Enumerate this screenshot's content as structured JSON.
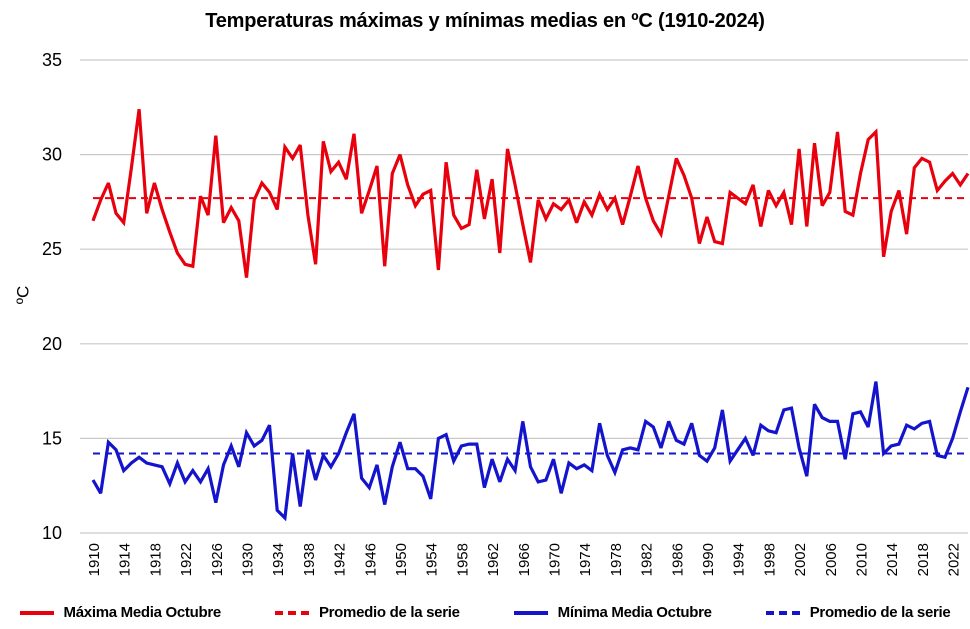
{
  "title": "Temperaturas máximas y mínimas medias en ºC (1910-2024)",
  "y_axis": {
    "label": "ºC",
    "ticks": [
      10,
      15,
      20,
      25,
      30,
      35
    ],
    "min": 10,
    "max": 35
  },
  "x_axis": {
    "tick_years": [
      1910,
      1914,
      1918,
      1922,
      1926,
      1930,
      1934,
      1938,
      1942,
      1946,
      1950,
      1954,
      1958,
      1962,
      1966,
      1970,
      1974,
      1978,
      1982,
      1986,
      1990,
      1994,
      1998,
      2002,
      2006,
      2010,
      2014,
      2018,
      2022
    ],
    "min": 1910,
    "max": 2024
  },
  "colors": {
    "max_series": "#e8000d",
    "min_series": "#1414cc",
    "grid": "#c9c9c9",
    "text": "#000000"
  },
  "legend": [
    {
      "label": "Máxima Media Octubre",
      "color": "#e8000d",
      "dashed": false
    },
    {
      "label": "Promedio de la serie",
      "color": "#e8000d",
      "dashed": true
    },
    {
      "label": "Mínima Media Octubre",
      "color": "#1414cc",
      "dashed": false
    },
    {
      "label": "Promedio de la serie",
      "color": "#1414cc",
      "dashed": true
    }
  ],
  "chart_data": {
    "type": "line",
    "title": "Temperaturas máximas y mínimas medias en ºC (1910-2024)",
    "xlabel": "",
    "ylabel": "ºC",
    "ylim": [
      10,
      35
    ],
    "xlim": [
      1910,
      2024
    ],
    "grid": "horizontal",
    "legend_position": "bottom",
    "x_start_year": 1910,
    "series": [
      {
        "name": "Máxima Media Octubre",
        "color": "#e8000d",
        "style": "solid",
        "values": [
          26.5,
          27.6,
          28.5,
          26.9,
          26.4,
          29.3,
          32.4,
          26.9,
          28.5,
          27.1,
          25.9,
          24.8,
          24.2,
          24.1,
          27.8,
          26.8,
          31.0,
          26.4,
          27.2,
          26.5,
          23.5,
          27.6,
          28.5,
          28.0,
          27.1,
          30.4,
          29.8,
          30.5,
          26.8,
          24.2,
          30.7,
          29.1,
          29.6,
          28.7,
          31.1,
          26.9,
          28.1,
          29.4,
          24.1,
          29.0,
          30.0,
          28.4,
          27.3,
          27.9,
          28.1,
          23.9,
          29.6,
          26.8,
          26.1,
          26.3,
          29.2,
          26.6,
          28.7,
          24.8,
          30.3,
          28.4,
          26.3,
          24.3,
          27.6,
          26.6,
          27.4,
          27.1,
          27.6,
          26.4,
          27.5,
          26.8,
          27.9,
          27.1,
          27.7,
          26.3,
          27.8,
          29.4,
          27.7,
          26.5,
          25.8,
          27.8,
          29.8,
          28.9,
          27.7,
          25.3,
          26.7,
          25.4,
          25.3,
          28.0,
          27.7,
          27.4,
          28.4,
          26.2,
          28.1,
          27.3,
          28.0,
          26.3,
          30.3,
          26.2,
          30.6,
          27.3,
          28.0,
          31.2,
          27.0,
          26.8,
          29.0,
          30.8,
          31.2,
          24.6,
          27.0,
          28.1,
          25.8,
          29.3,
          29.8,
          29.6,
          28.1,
          28.6,
          29.0,
          28.4,
          29.0
        ]
      },
      {
        "name": "Mínima Media Octubre",
        "color": "#1414cc",
        "style": "solid",
        "values": [
          12.8,
          12.1,
          14.8,
          14.4,
          13.3,
          13.7,
          14.0,
          13.7,
          13.6,
          13.5,
          12.6,
          13.7,
          12.7,
          13.3,
          12.7,
          13.4,
          11.6,
          13.6,
          14.6,
          13.5,
          15.3,
          14.6,
          14.9,
          15.7,
          11.2,
          10.8,
          14.2,
          11.4,
          14.4,
          12.8,
          14.1,
          13.5,
          14.2,
          15.3,
          16.3,
          12.9,
          12.4,
          13.6,
          11.5,
          13.5,
          14.8,
          13.4,
          13.4,
          13.0,
          11.8,
          15.0,
          15.2,
          13.8,
          14.6,
          14.7,
          14.7,
          12.4,
          13.9,
          12.7,
          13.9,
          13.3,
          15.9,
          13.5,
          12.7,
          12.8,
          13.9,
          12.1,
          13.7,
          13.4,
          13.6,
          13.3,
          15.8,
          14.1,
          13.2,
          14.4,
          14.5,
          14.4,
          15.9,
          15.6,
          14.5,
          15.9,
          14.9,
          14.7,
          15.8,
          14.1,
          13.8,
          14.5,
          16.5,
          13.8,
          14.4,
          15.0,
          14.1,
          15.7,
          15.4,
          15.3,
          16.5,
          16.6,
          14.5,
          13.0,
          16.8,
          16.1,
          15.9,
          15.9,
          13.9,
          16.3,
          16.4,
          15.6,
          18.0,
          14.2,
          14.6,
          14.7,
          15.7,
          15.5,
          15.8,
          15.9,
          14.1,
          14.0,
          15.0,
          16.4,
          17.7
        ]
      }
    ],
    "average_lines": [
      {
        "name": "Promedio de la serie (máxima)",
        "value": 27.7,
        "color": "#e8000d",
        "style": "dashed"
      },
      {
        "name": "Promedio de la serie (mínima)",
        "value": 14.2,
        "color": "#1414cc",
        "style": "dashed"
      }
    ]
  }
}
